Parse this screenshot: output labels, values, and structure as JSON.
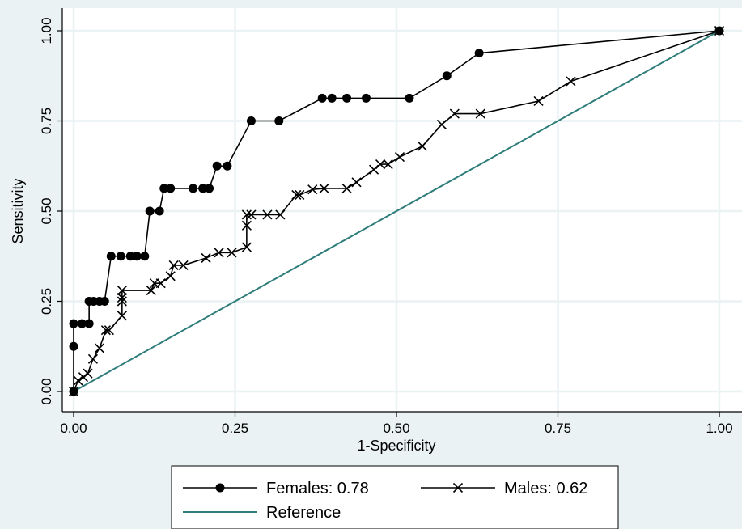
{
  "chart_data": {
    "type": "line",
    "title": "",
    "xlabel": "1-Specificity",
    "ylabel": "Sensitivity",
    "xlim": [
      0,
      1
    ],
    "ylim": [
      0,
      1
    ],
    "xticks": [
      "0.00",
      "0.25",
      "0.50",
      "0.75",
      "1.00"
    ],
    "yticks": [
      "0.00",
      "0.25",
      "0.50",
      "0.75",
      "1.00"
    ],
    "grid": true,
    "legend_position": "bottom",
    "colors": {
      "background": "#eaf2f3",
      "plot_background": "#ffffff",
      "grid": "#eaf2f3",
      "series": "#000000",
      "reference": "#2e7d7a"
    },
    "series": [
      {
        "name": "Females: 0.78",
        "marker": "circle",
        "x": [
          0,
          0,
          0,
          0.013,
          0.024,
          0.024,
          0.031,
          0.04,
          0.048,
          0.058,
          0.073,
          0.088,
          0.098,
          0.11,
          0.118,
          0.133,
          0.14,
          0.15,
          0.185,
          0.2,
          0.21,
          0.222,
          0.238,
          0.275,
          0.318,
          0.385,
          0.4,
          0.423,
          0.453,
          0.52,
          0.578,
          0.628,
          1
        ],
        "y": [
          0,
          0.125,
          0.188,
          0.188,
          0.188,
          0.25,
          0.25,
          0.25,
          0.25,
          0.375,
          0.375,
          0.375,
          0.375,
          0.375,
          0.5,
          0.5,
          0.563,
          0.563,
          0.563,
          0.563,
          0.563,
          0.625,
          0.625,
          0.75,
          0.75,
          0.813,
          0.813,
          0.813,
          0.813,
          0.813,
          0.875,
          0.938,
          1
        ]
      },
      {
        "name": "Males: 0.62",
        "marker": "x",
        "x": [
          0,
          0.007,
          0.015,
          0.022,
          0.03,
          0.04,
          0.05,
          0.055,
          0.075,
          0.075,
          0.075,
          0.075,
          0.12,
          0.125,
          0.135,
          0.15,
          0.155,
          0.17,
          0.205,
          0.225,
          0.245,
          0.268,
          0.268,
          0.268,
          0.275,
          0.3,
          0.32,
          0.345,
          0.35,
          0.37,
          0.388,
          0.423,
          0.438,
          0.465,
          0.475,
          0.487,
          0.505,
          0.54,
          0.57,
          0.59,
          0.63,
          0.72,
          0.77,
          1
        ],
        "y": [
          0,
          0.03,
          0.04,
          0.05,
          0.09,
          0.12,
          0.17,
          0.17,
          0.21,
          0.25,
          0.26,
          0.28,
          0.28,
          0.3,
          0.3,
          0.32,
          0.35,
          0.35,
          0.37,
          0.385,
          0.385,
          0.4,
          0.46,
          0.49,
          0.49,
          0.49,
          0.49,
          0.545,
          0.545,
          0.56,
          0.563,
          0.563,
          0.58,
          0.615,
          0.63,
          0.63,
          0.65,
          0.68,
          0.74,
          0.77,
          0.77,
          0.805,
          0.86,
          1
        ]
      },
      {
        "name": "Reference",
        "marker": "none",
        "x": [
          0,
          1
        ],
        "y": [
          0,
          1
        ]
      }
    ]
  }
}
